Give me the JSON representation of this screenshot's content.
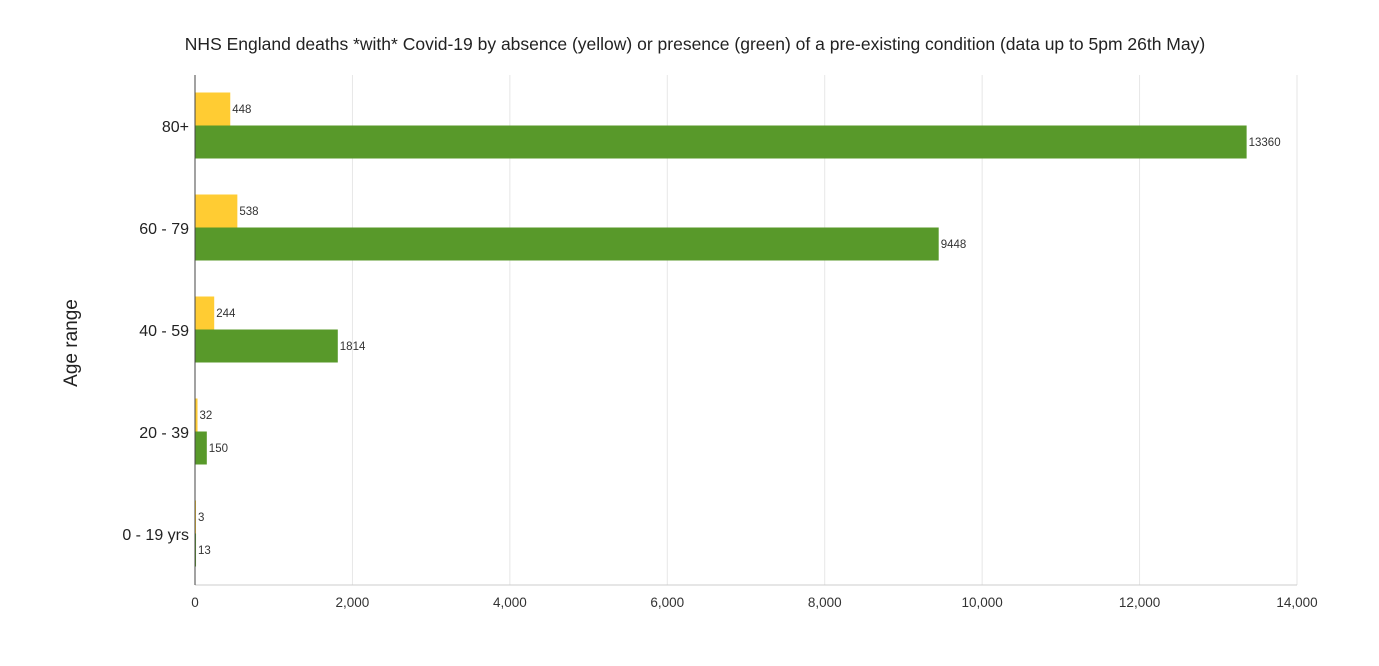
{
  "chart_data": {
    "type": "bar",
    "orientation": "horizontal",
    "title": "NHS England deaths *with* Covid-19 by absence (yellow) or presence (green) of a pre-existing condition (data up to 5pm 26th May)",
    "xlabel": "",
    "ylabel": "Age range",
    "categories": [
      "80+",
      "60 - 79",
      "40 - 59",
      "20 - 39",
      "0 - 19 yrs"
    ],
    "series": [
      {
        "color": "#FFCC33",
        "values": [
          448,
          538,
          244,
          32,
          3
        ]
      },
      {
        "color": "#58992A",
        "values": [
          13360,
          9448,
          1814,
          150,
          13
        ]
      }
    ],
    "xlim": [
      0,
      14000
    ],
    "xticks": [
      0,
      2000,
      4000,
      6000,
      8000,
      10000,
      12000,
      14000
    ],
    "xtick_labels": [
      "0",
      "2,000",
      "4,000",
      "6,000",
      "8,000",
      "10,000",
      "12,000",
      "14,000"
    ],
    "grid": "vertical",
    "data_labels": true,
    "legend": "none"
  }
}
